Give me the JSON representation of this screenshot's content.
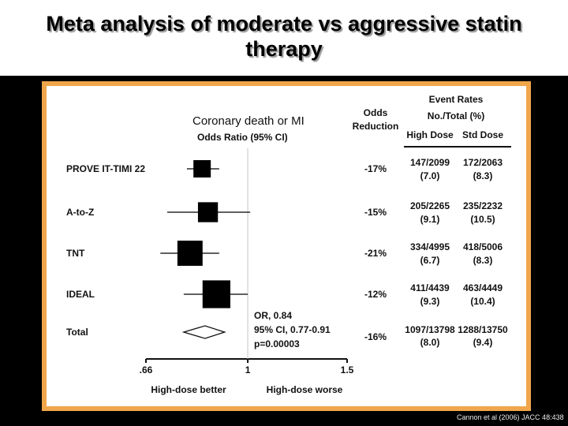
{
  "slide": {
    "title_line1": "Meta analysis of moderate vs aggressive statin",
    "title_line2": "therapy",
    "citation": "Cannon et al (2006) JACC 48:438"
  },
  "colors": {
    "frame": "#f0a64a",
    "background": "#000000",
    "marker": "#000000"
  },
  "chart_data": {
    "type": "forest",
    "title": "Coronary death or MI",
    "axis_title": "Odds Ratio (95% CI)",
    "xscale": "log",
    "xlim": [
      0.66,
      1.5
    ],
    "xticks": [
      0.66,
      1,
      1.5
    ],
    "xtick_labels": [
      ".66",
      "1",
      "1.5"
    ],
    "reference_line": 1,
    "xlabel_left": "High-dose better",
    "xlabel_right": "High-dose worse",
    "col_headers": {
      "odds_reduction": [
        "Odds",
        "Reduction"
      ],
      "event_rates": [
        "Event Rates",
        "No./Total (%)"
      ],
      "high_dose": "High Dose",
      "std_dose": "Std Dose"
    },
    "trials": [
      {
        "name": "PROVE IT-TIMI 22",
        "or": 0.83,
        "ci": [
          0.78,
          0.89
        ],
        "weight": 1.0,
        "reduction": "-17%",
        "high_events": "147/2099",
        "high_pct": "(7.0)",
        "std_events": "172/2063",
        "std_pct": "(8.3)"
      },
      {
        "name": "A-to-Z",
        "or": 0.85,
        "ci": [
          0.72,
          1.01
        ],
        "weight": 1.15,
        "reduction": "-15%",
        "high_events": "205/2265",
        "high_pct": "(9.1)",
        "std_events": "235/2232",
        "std_pct": "(10.5)"
      },
      {
        "name": "TNT",
        "or": 0.79,
        "ci": [
          0.7,
          0.89
        ],
        "weight": 1.45,
        "reduction": "-21%",
        "high_events": "334/4995",
        "high_pct": "(6.7)",
        "std_events": "418/5006",
        "std_pct": "(8.3)"
      },
      {
        "name": "IDEAL",
        "or": 0.88,
        "ci": [
          0.77,
          1.0
        ],
        "weight": 1.6,
        "reduction": "-12%",
        "high_events": "411/4439",
        "high_pct": "(9.3)",
        "std_events": "463/4449",
        "std_pct": "(10.4)"
      }
    ],
    "total": {
      "name": "Total",
      "or": 0.84,
      "ci": [
        0.77,
        0.91
      ],
      "or_text": "OR, 0.84",
      "ci_text": "95% CI, 0.77-0.91",
      "p_text": "p=0.00003",
      "reduction": "-16%",
      "high_events": "1097/13798",
      "high_pct": "(8.0)",
      "std_events": "1288/13750",
      "std_pct": "(9.4)"
    }
  }
}
